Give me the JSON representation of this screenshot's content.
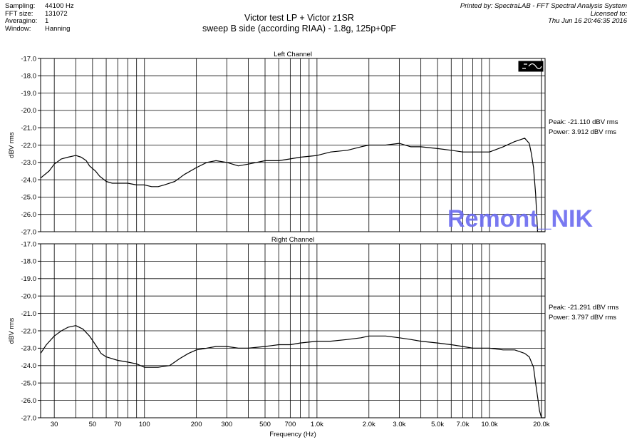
{
  "header": {
    "meta": [
      {
        "key": "Sampling:",
        "value": "44100 Hz"
      },
      {
        "key": "FFT size:",
        "value": "131072"
      },
      {
        "key": "Averagino:",
        "value": "1"
      },
      {
        "key": "Window:",
        "value": "Hanning"
      }
    ],
    "title_line1": "Victor test LP + Victor z1SR",
    "title_line2": "sweep B side (according RIAA) - 1.8g, 125p+0pF",
    "printed_by": "Printed by: SpectraLAB - FFT Spectral Analysis System",
    "licensed_to": "Licensed to:",
    "printed_date": "Thu Jun 16 20:46:35 2016"
  },
  "watermark": "Remont_NIK",
  "chart_data": [
    {
      "type": "line",
      "title": "Left Channel",
      "xlabel": "Frequency (Hz)",
      "ylabel": "dBV rms",
      "x_scale": "log",
      "xlim": [
        25,
        21000
      ],
      "ylim": [
        -27.0,
        -17.0
      ],
      "y_ticks": [
        "-17.0",
        "-18.0",
        "-19.0",
        "-20.0",
        "-21.0",
        "-22.0",
        "-23.0",
        "-24.0",
        "-25.0",
        "-26.0",
        "-27.0"
      ],
      "x_tick_labels": [
        {
          "value": 30,
          "label": "30"
        },
        {
          "value": 50,
          "label": "50"
        },
        {
          "value": 70,
          "label": "70"
        },
        {
          "value": 100,
          "label": "100"
        },
        {
          "value": 200,
          "label": "200"
        },
        {
          "value": 300,
          "label": "300"
        },
        {
          "value": 500,
          "label": "500"
        },
        {
          "value": 700,
          "label": "700"
        },
        {
          "value": 1000,
          "label": "1.0k"
        },
        {
          "value": 2000,
          "label": "2.0k"
        },
        {
          "value": 3000,
          "label": "3.0k"
        },
        {
          "value": 5000,
          "label": "5.0k"
        },
        {
          "value": 7000,
          "label": "7.0k"
        },
        {
          "value": 10000,
          "label": "10.0k"
        },
        {
          "value": 20000,
          "label": "20.0k"
        }
      ],
      "grid": true,
      "peak_text": "Peak: -21.110 dBV rms",
      "power_text": "Power: 3.912 dBV rms",
      "series": [
        {
          "color": "#000000",
          "x": [
            25,
            28,
            30,
            33,
            36,
            40,
            43,
            46,
            48,
            52,
            55,
            60,
            65,
            70,
            80,
            90,
            100,
            110,
            120,
            130,
            150,
            170,
            200,
            230,
            260,
            300,
            350,
            400,
            500,
            600,
            700,
            800,
            1000,
            1200,
            1500,
            1800,
            2000,
            2500,
            3000,
            3500,
            4000,
            5000,
            6000,
            7000,
            8000,
            10000,
            12000,
            14000,
            15000,
            16000,
            17000,
            17500,
            18000,
            18500,
            19000,
            19500,
            20000,
            21000
          ],
          "y": [
            -23.9,
            -23.5,
            -23.1,
            -22.8,
            -22.7,
            -22.6,
            -22.7,
            -22.9,
            -23.2,
            -23.5,
            -23.8,
            -24.1,
            -24.2,
            -24.2,
            -24.2,
            -24.3,
            -24.3,
            -24.4,
            -24.4,
            -24.3,
            -24.1,
            -23.7,
            -23.3,
            -23.0,
            -22.9,
            -23.0,
            -23.2,
            -23.1,
            -22.9,
            -22.9,
            -22.8,
            -22.7,
            -22.6,
            -22.4,
            -22.3,
            -22.1,
            -22.0,
            -22.0,
            -21.9,
            -22.1,
            -22.1,
            -22.2,
            -22.3,
            -22.4,
            -22.4,
            -22.4,
            -22.1,
            -21.8,
            -21.7,
            -21.6,
            -21.9,
            -22.5,
            -23.3,
            -24.8,
            -27.0,
            -27.0,
            -27.0,
            -27.0
          ]
        }
      ]
    },
    {
      "type": "line",
      "title": "Right Channel",
      "xlabel": "Frequency (Hz)",
      "ylabel": "dBV rms",
      "x_scale": "log",
      "xlim": [
        25,
        21000
      ],
      "ylim": [
        -27.0,
        -17.0
      ],
      "y_ticks": [
        "-17.0",
        "-18.0",
        "-19.0",
        "-20.0",
        "-21.0",
        "-22.0",
        "-23.0",
        "-24.0",
        "-25.0",
        "-26.0",
        "-27.0"
      ],
      "x_tick_labels": [
        {
          "value": 30,
          "label": "30"
        },
        {
          "value": 50,
          "label": "50"
        },
        {
          "value": 70,
          "label": "70"
        },
        {
          "value": 100,
          "label": "100"
        },
        {
          "value": 200,
          "label": "200"
        },
        {
          "value": 300,
          "label": "300"
        },
        {
          "value": 500,
          "label": "500"
        },
        {
          "value": 700,
          "label": "700"
        },
        {
          "value": 1000,
          "label": "1.0k"
        },
        {
          "value": 2000,
          "label": "2.0k"
        },
        {
          "value": 3000,
          "label": "3.0k"
        },
        {
          "value": 5000,
          "label": "5.0k"
        },
        {
          "value": 7000,
          "label": "7.0k"
        },
        {
          "value": 10000,
          "label": "10.0k"
        },
        {
          "value": 20000,
          "label": "20.0k"
        }
      ],
      "grid": true,
      "peak_text": "Peak: -21.291 dBV rms",
      "power_text": "Power: 3.797 dBV rms",
      "series": [
        {
          "color": "#000000",
          "x": [
            25,
            27,
            30,
            33,
            36,
            40,
            44,
            48,
            52,
            56,
            60,
            70,
            80,
            90,
            100,
            110,
            120,
            140,
            160,
            180,
            200,
            230,
            260,
            300,
            350,
            400,
            500,
            600,
            700,
            800,
            1000,
            1200,
            1500,
            1800,
            2000,
            2500,
            3000,
            3500,
            4000,
            5000,
            6000,
            7000,
            8000,
            10000,
            12000,
            14000,
            15000,
            16000,
            17000,
            18000,
            18500,
            19000,
            19500,
            20000,
            21000
          ],
          "y": [
            -23.3,
            -22.8,
            -22.3,
            -22.0,
            -21.8,
            -21.7,
            -21.9,
            -22.3,
            -22.8,
            -23.3,
            -23.5,
            -23.7,
            -23.8,
            -23.9,
            -24.1,
            -24.1,
            -24.1,
            -24.0,
            -23.6,
            -23.3,
            -23.1,
            -23.0,
            -22.9,
            -22.9,
            -23.0,
            -23.0,
            -22.9,
            -22.8,
            -22.8,
            -22.7,
            -22.6,
            -22.6,
            -22.5,
            -22.4,
            -22.3,
            -22.3,
            -22.4,
            -22.5,
            -22.6,
            -22.7,
            -22.8,
            -22.9,
            -23.0,
            -23.0,
            -23.1,
            -23.1,
            -23.2,
            -23.3,
            -23.5,
            -24.1,
            -25.0,
            -25.8,
            -26.6,
            -27.0,
            -27.0
          ]
        }
      ]
    }
  ]
}
